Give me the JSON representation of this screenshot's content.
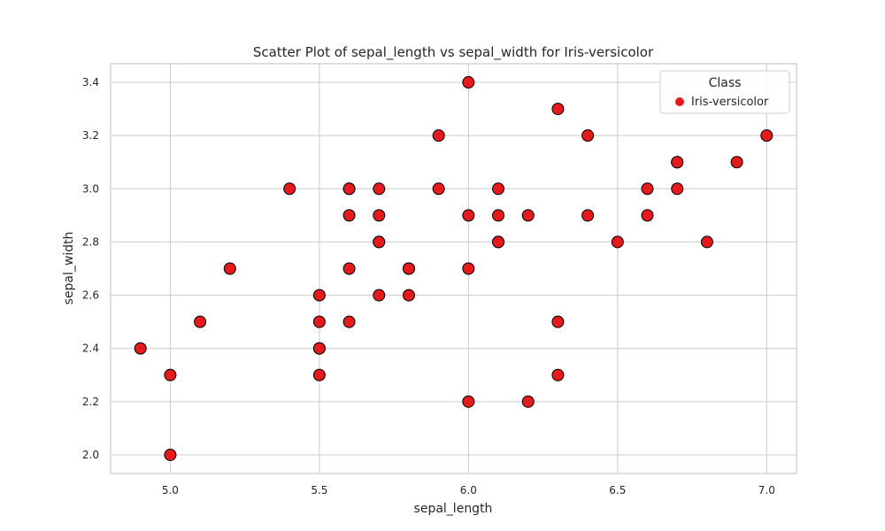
{
  "chart_data": {
    "type": "scatter",
    "title": "Scatter Plot of sepal_length vs sepal_width for Iris-versicolor",
    "xlabel": "sepal_length",
    "ylabel": "sepal_width",
    "xlim": [
      4.8,
      7.1
    ],
    "ylim": [
      1.93,
      3.47
    ],
    "xticks": [
      "5.0",
      "5.5",
      "6.0",
      "6.5",
      "7.0"
    ],
    "yticks": [
      "2.0",
      "2.2",
      "2.4",
      "2.6",
      "2.8",
      "3.0",
      "3.2",
      "3.4"
    ],
    "grid": true,
    "legend": {
      "title": "Class",
      "placement": "top-right"
    },
    "series": [
      {
        "name": "Iris-versicolor",
        "color": "#e41a1c",
        "edge_color": "#000000",
        "x": [
          7.0,
          6.4,
          6.9,
          5.5,
          6.5,
          5.7,
          6.3,
          4.9,
          6.6,
          5.2,
          5.0,
          5.9,
          6.0,
          6.1,
          5.6,
          6.7,
          5.6,
          5.8,
          6.2,
          5.6,
          5.9,
          6.1,
          6.3,
          6.1,
          6.4,
          6.6,
          6.8,
          6.7,
          6.0,
          5.7,
          5.5,
          5.5,
          5.8,
          6.0,
          5.4,
          6.0,
          6.7,
          6.3,
          5.6,
          5.5,
          5.5,
          6.1,
          5.8,
          5.0,
          5.6,
          5.7,
          5.7,
          6.2,
          5.1,
          5.7
        ],
        "y": [
          3.2,
          3.2,
          3.1,
          2.3,
          2.8,
          2.8,
          3.3,
          2.4,
          2.9,
          2.7,
          2.0,
          3.0,
          2.2,
          2.9,
          2.9,
          3.1,
          3.0,
          2.7,
          2.2,
          2.5,
          3.2,
          2.8,
          2.5,
          2.8,
          2.9,
          3.0,
          2.8,
          3.0,
          2.9,
          2.6,
          2.4,
          2.4,
          2.7,
          2.7,
          3.0,
          3.4,
          3.1,
          2.3,
          3.0,
          2.5,
          2.6,
          3.0,
          2.6,
          2.3,
          2.7,
          3.0,
          2.9,
          2.9,
          2.5,
          2.8
        ]
      }
    ]
  }
}
